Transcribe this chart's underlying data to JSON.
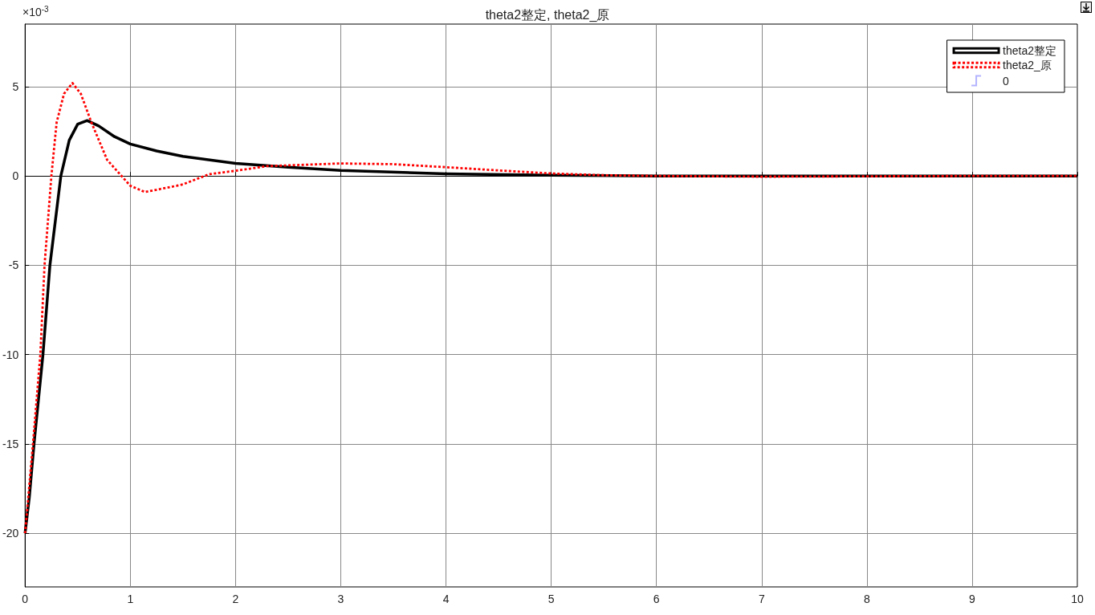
{
  "chart_data": {
    "type": "line",
    "title": "theta2整定, theta2_原",
    "series": [
      {
        "name": "theta2整定",
        "color": "#000000",
        "line_style": "solid",
        "x": [
          0,
          0.04,
          0.085,
          0.17,
          0.236,
          0.34,
          0.42,
          0.5,
          0.59,
          0.7,
          0.85,
          1,
          1.25,
          1.5,
          2,
          2.5,
          3,
          4,
          5,
          6,
          7,
          8,
          9,
          10
        ],
        "values": [
          -20,
          -18,
          -15,
          -10,
          -5,
          0,
          2,
          2.9,
          3.1,
          2.8,
          2.2,
          1.79,
          1.4,
          1.1,
          0.7,
          0.49,
          0.31,
          0.12,
          0.04,
          0,
          0,
          0,
          0,
          0
        ]
      },
      {
        "name": "theta2_原",
        "color": "#ff0000",
        "line_style": "dotted",
        "x": [
          0,
          0.075,
          0.145,
          0.185,
          0.25,
          0.3,
          0.37,
          0.45,
          0.53,
          0.63,
          0.78,
          1,
          1.14,
          1.44,
          1.5,
          1.75,
          2,
          2.3,
          3,
          3.5,
          4,
          4.5,
          5,
          5.5,
          6,
          7,
          8,
          9,
          10
        ],
        "values": [
          -20,
          -15,
          -10,
          -5,
          0,
          3,
          4.6,
          5.2,
          4.6,
          3,
          0.9,
          -0.55,
          -0.9,
          -0.55,
          -0.47,
          0.1,
          0.29,
          0.55,
          0.7,
          0.66,
          0.49,
          0.31,
          0.14,
          0.04,
          0,
          -0.04,
          -0.02,
          0,
          0
        ]
      },
      {
        "name": "0",
        "color": "#b3b3ff",
        "type": "step"
      }
    ],
    "xlim": [
      0,
      10
    ],
    "xticks": [
      0,
      1,
      2,
      3,
      4,
      5,
      6,
      7,
      8,
      9,
      10
    ],
    "ylim": [
      -23,
      8.5
    ],
    "yticks": [
      -20,
      -15,
      -10,
      -5,
      0,
      5
    ],
    "annotations": [
      "×10$^{-3}$"
    ],
    "grid": true,
    "legend": "top right",
    "marker": "none"
  }
}
